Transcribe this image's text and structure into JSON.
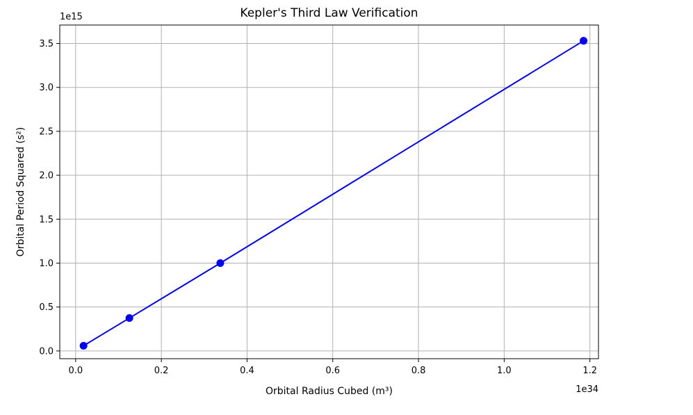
{
  "chart_data": {
    "type": "line",
    "title": "Kepler's Third Law Verification",
    "xlabel": "Orbital Radius Cubed (m³)",
    "ylabel": "Orbital Period Squared (s²)",
    "x_offset_text": "1e34",
    "y_offset_text": "1e15",
    "x_scale_exponent": 34,
    "y_scale_exponent": 15,
    "xlim": [
      -0.037,
      1.22
    ],
    "ylim": [
      -0.088,
      3.71
    ],
    "x_ticks": [
      0.0,
      0.2,
      0.4,
      0.6,
      0.8,
      1.0,
      1.2
    ],
    "x_tick_labels": [
      "0.0",
      "0.2",
      "0.4",
      "0.6",
      "0.8",
      "1.0",
      "1.2"
    ],
    "y_ticks": [
      0.0,
      0.5,
      1.0,
      1.5,
      2.0,
      2.5,
      3.0,
      3.5
    ],
    "y_tick_labels": [
      "0.0",
      "0.5",
      "1.0",
      "1.5",
      "2.0",
      "2.5",
      "3.0",
      "3.5"
    ],
    "grid": true,
    "series": [
      {
        "color": "#0000ff",
        "marker": "circle",
        "x": [
          0.0184,
          0.1254,
          0.3375,
          1.1852
        ],
        "y": [
          0.0592,
          0.3745,
          1.0,
          3.5305
        ]
      }
    ]
  }
}
